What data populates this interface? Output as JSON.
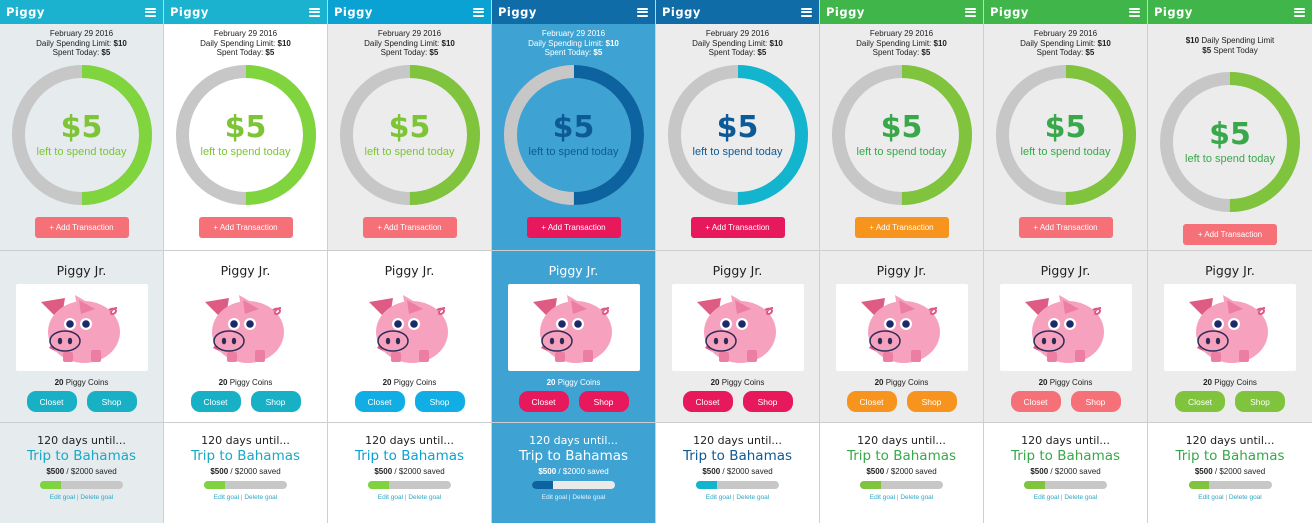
{
  "app_title": "Piggy",
  "panels": [
    {
      "theme": {
        "header": "#1ab2cf",
        "sec1_bg": "#e6ebed",
        "sec2_bg": "#e6ebed",
        "sec3_bg": "#e6ebed",
        "ring_fg": "#80d43d",
        "ring_bg": "#c7c7c7",
        "amount_color": "#7dc436",
        "left_color": "#7dc436",
        "add_btn": "#f67177",
        "btn": "#18b0c5",
        "goal_color": "#19a8c8",
        "progress_fill": "#7ed33f",
        "dark": false
      },
      "date": "February 29 2016",
      "limit_label": "Daily Spending Limit: ",
      "limit_value": "$10",
      "spent_label": "Spent Today: ",
      "spent_value": "$5",
      "amount": "$5",
      "left_label": "left to spend today",
      "add_label": "+ Add Transaction",
      "piggy_name": "Piggy Jr.",
      "coins_count": "20",
      "coins_label": " Piggy Coins",
      "closet_label": "Closet",
      "shop_label": "Shop",
      "days_label": "120 days until...",
      "goal_name": "Trip to Bahamas",
      "saved_amount": "$500",
      "saved_total": " / $2000 saved",
      "progress": 0.25,
      "edit_label": "Edit goal",
      "delete_label": "Delete goal"
    },
    {
      "theme": {
        "header": "#1ab2cf",
        "sec1_bg": "#ffffff",
        "sec2_bg": "#ffffff",
        "sec3_bg": "#ffffff",
        "ring_fg": "#80d43d",
        "ring_bg": "#c7c7c7",
        "amount_color": "#7dc436",
        "left_color": "#7dc436",
        "add_btn": "#f67177",
        "btn": "#18b0c5",
        "goal_color": "#19a8c8",
        "progress_fill": "#7ed33f",
        "dark": false
      },
      "date": "February 29 2016",
      "limit_label": "Daily Spending Limit: ",
      "limit_value": "$10",
      "spent_label": "Spent Today: ",
      "spent_value": "$5",
      "amount": "$5",
      "left_label": "left to spend today",
      "add_label": "+ Add Transaction",
      "piggy_name": "Piggy Jr.",
      "coins_count": "20",
      "coins_label": " Piggy Coins",
      "closet_label": "Closet",
      "shop_label": "Shop",
      "days_label": "120 days until...",
      "goal_name": "Trip to Bahamas",
      "saved_amount": "$500",
      "saved_total": " / $2000 saved",
      "progress": 0.25,
      "edit_label": "Edit goal",
      "delete_label": "Delete goal"
    },
    {
      "theme": {
        "header": "#0aa2d2",
        "sec1_bg": "#ececec",
        "sec2_bg": "#ffffff",
        "sec3_bg": "#ffffff",
        "ring_fg": "#80c33d",
        "ring_bg": "#c7c7c7",
        "amount_color": "#7dc436",
        "left_color": "#7dc436",
        "add_btn": "#f67177",
        "btn": "#10aee4",
        "goal_color": "#0aa2d2",
        "progress_fill": "#7ed33f",
        "dark": false
      },
      "date": "February 29 2016",
      "limit_label": "Daily Spending Limit: ",
      "limit_value": "$10",
      "spent_label": "Spent Today: ",
      "spent_value": "$5",
      "amount": "$5",
      "left_label": "left to spend today",
      "add_label": "+ Add Transaction",
      "piggy_name": "Piggy Jr.",
      "coins_count": "20",
      "coins_label": " Piggy Coins",
      "closet_label": "Closet",
      "shop_label": "Shop",
      "days_label": "120 days until...",
      "goal_name": "Trip to Bahamas",
      "saved_amount": "$500",
      "saved_total": " / $2000 saved",
      "progress": 0.25,
      "edit_label": "Edit goal",
      "delete_label": "Delete goal"
    },
    {
      "theme": {
        "header": "#0f6ca6",
        "sec1_bg": "#3ea3d3",
        "sec2_bg": "#3ea3d3",
        "sec3_bg": "#3ea3d3",
        "ring_fg": "#0d63a0",
        "ring_bg": "#c7c7c7",
        "amount_color": "#0d5a96",
        "left_color": "#0d5a96",
        "add_btn": "#e8185c",
        "btn": "#e8185c",
        "goal_color": "#ffffff",
        "progress_fill": "#0d63a0",
        "dark": true
      },
      "date": "February 29 2016",
      "limit_label": "Daily Spending Limit: ",
      "limit_value": "$10",
      "spent_label": "Spent Today: ",
      "spent_value": "$5",
      "amount": "$5",
      "left_label": "left to spend today",
      "add_label": "+ Add Transaction",
      "piggy_name": "Piggy Jr.",
      "coins_count": "20",
      "coins_label": " Piggy Coins",
      "closet_label": "Closet",
      "shop_label": "Shop",
      "days_label": "120 days until...",
      "goal_name": "Trip to Bahamas",
      "saved_amount": "$500",
      "saved_total": " / $2000 saved",
      "progress": 0.25,
      "edit_label": "Edit goal",
      "delete_label": "Delete goal"
    },
    {
      "theme": {
        "header": "#0f6ca6",
        "sec1_bg": "#ececec",
        "sec2_bg": "#ececec",
        "sec3_bg": "#ffffff",
        "ring_fg": "#12b4ce",
        "ring_bg": "#c7c7c7",
        "amount_color": "#0d5a96",
        "left_color": "#0d5a96",
        "add_btn": "#e8185c",
        "btn": "#e8185c",
        "goal_color": "#0d5a96",
        "progress_fill": "#12b4ce",
        "dark": false
      },
      "date": "February 29 2016",
      "limit_label": "Daily Spending Limit: ",
      "limit_value": "$10",
      "spent_label": "Spent Today: ",
      "spent_value": "$5",
      "amount": "$5",
      "left_label": "left to spend today",
      "add_label": "+ Add Transaction",
      "piggy_name": "Piggy Jr.",
      "coins_count": "20",
      "coins_label": " Piggy Coins",
      "closet_label": "Closet",
      "shop_label": "Shop",
      "days_label": "120 days until...",
      "goal_name": "Trip to Bahamas",
      "saved_amount": "$500",
      "saved_total": " / $2000 saved",
      "progress": 0.25,
      "edit_label": "Edit goal",
      "delete_label": "Delete goal"
    },
    {
      "theme": {
        "header": "#3fb54a",
        "sec1_bg": "#ececec",
        "sec2_bg": "#ececec",
        "sec3_bg": "#ffffff",
        "ring_fg": "#80c33d",
        "ring_bg": "#c7c7c7",
        "amount_color": "#38a84a",
        "left_color": "#38a84a",
        "add_btn": "#f7941d",
        "btn": "#f7941d",
        "goal_color": "#38a84a",
        "progress_fill": "#80c33d",
        "dark": false
      },
      "date": "February 29 2016",
      "limit_label": "Daily Spending Limit: ",
      "limit_value": "$10",
      "spent_label": "Spent Today: ",
      "spent_value": "$5",
      "amount": "$5",
      "left_label": "left to spend today",
      "add_label": "+ Add Transaction",
      "piggy_name": "Piggy Jr.",
      "coins_count": "20",
      "coins_label": " Piggy Coins",
      "closet_label": "Closet",
      "shop_label": "Shop",
      "days_label": "120 days until...",
      "goal_name": "Trip to Bahamas",
      "saved_amount": "$500",
      "saved_total": " / $2000 saved",
      "progress": 0.25,
      "edit_label": "Edit goal",
      "delete_label": "Delete goal"
    },
    {
      "theme": {
        "header": "#3fb54a",
        "sec1_bg": "#ececec",
        "sec2_bg": "#ececec",
        "sec3_bg": "#ffffff",
        "ring_fg": "#80c33d",
        "ring_bg": "#c7c7c7",
        "amount_color": "#38a84a",
        "left_color": "#38a84a",
        "add_btn": "#f67177",
        "btn": "#f67177",
        "goal_color": "#38a84a",
        "progress_fill": "#80c33d",
        "dark": false
      },
      "date": "February 29 2016",
      "limit_label": "Daily Spending Limit: ",
      "limit_value": "$10",
      "spent_label": "Spent Today: ",
      "spent_value": "$5",
      "amount": "$5",
      "left_label": "left to spend today",
      "add_label": "+ Add Transaction",
      "piggy_name": "Piggy Jr.",
      "coins_count": "20",
      "coins_label": " Piggy Coins",
      "closet_label": "Closet",
      "shop_label": "Shop",
      "days_label": "120 days until...",
      "goal_name": "Trip to Bahamas",
      "saved_amount": "$500",
      "saved_total": " / $2000 saved",
      "progress": 0.25,
      "edit_label": "Edit goal",
      "delete_label": "Delete goal"
    },
    {
      "theme": {
        "header": "#3fb54a",
        "sec1_bg": "#ececec",
        "sec2_bg": "#ececec",
        "sec3_bg": "#ffffff",
        "ring_fg": "#80c33d",
        "ring_bg": "#c7c7c7",
        "amount_color": "#38a84a",
        "left_color": "#38a84a",
        "add_btn": "#f67177",
        "btn": "#80c33d",
        "goal_color": "#38a84a",
        "progress_fill": "#80c33d",
        "dark": false
      },
      "date": "",
      "limit_label": " Daily Spending Limit",
      "limit_value": "$10",
      "spent_label": " Spent Today",
      "spent_value": "$5",
      "amount": "$5",
      "left_label": "left to spend today",
      "add_label": "+ Add Transaction",
      "piggy_name": "Piggy Jr.",
      "coins_count": "20",
      "coins_label": " Piggy Coins",
      "closet_label": "Closet",
      "shop_label": "Shop",
      "days_label": "120 days until...",
      "goal_name": "Trip to Bahamas",
      "saved_amount": "$500",
      "saved_total": " / $2000 saved",
      "progress": 0.25,
      "edit_label": "Edit goal",
      "delete_label": "Delete goal",
      "value_first": true
    }
  ]
}
